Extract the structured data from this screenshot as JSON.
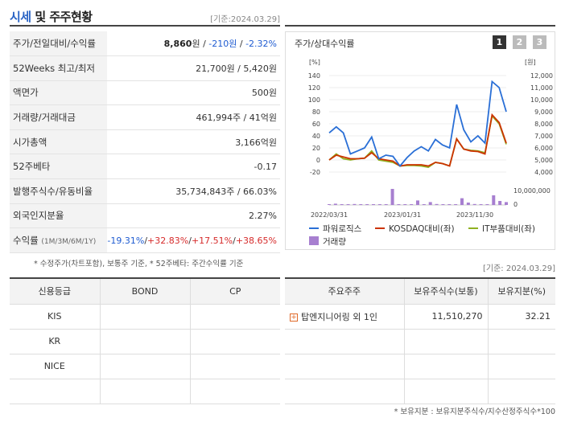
{
  "header": {
    "title_a": "시세",
    "title_b": " 및 주주현황",
    "date": "[기준:2024.03.29]"
  },
  "info_rows": [
    {
      "key": "주가/전일대비/수익률",
      "price": "8,860",
      "unit": "원",
      "sep1": " / ",
      "change": "-210원",
      "sep2": " / ",
      "rate": "-2.32%"
    },
    {
      "key": "52Weeks 최고/최저",
      "value": "21,700원 / 5,420원"
    },
    {
      "key": "액면가",
      "value": "500원"
    },
    {
      "key": "거래량/거래대금",
      "value": "461,994주 / 41억원"
    },
    {
      "key": "시가총액",
      "value": "3,166억원"
    },
    {
      "key": "52주베타",
      "value": "-0.17"
    },
    {
      "key": "발행주식수/유동비율",
      "value": "35,734,843주 / 66.03%"
    },
    {
      "key": "외국인지분율",
      "value": "2.27%"
    },
    {
      "key": "수익률",
      "key_small": "(1M/3M/6M/1Y)",
      "r1": "-19.31%",
      "r2": "+32.83%",
      "r3": "+17.51%",
      "r4": "+38.65%",
      "s": "/"
    }
  ],
  "footnote1": "* 수정주가(차트포함), 보통주 기준, * 52주베타: 주간수익률 기준",
  "chart": {
    "title": "주가/상대수익률",
    "tabs": [
      "1",
      "2",
      "3"
    ],
    "left_unit": "[%]",
    "right_unit": "[원]",
    "volume_tick": "10,000,000",
    "volume_zero": "0",
    "legend": [
      "파워로직스",
      "KOSDAQ대비(좌)",
      "IT부품대비(좌)",
      "거래량"
    ],
    "colors": {
      "main": "#2a6fd6",
      "kosdaq": "#cc3300",
      "it": "#8fb021",
      "volume": "#a77fd0"
    }
  },
  "chart_data": {
    "type": "line",
    "x_labels": [
      "2022/03/31",
      "2023/01/31",
      "2023/11/30"
    ],
    "left_ticks": [
      "140",
      "120",
      "100",
      "80",
      "60",
      "40",
      "20",
      "0",
      "-20"
    ],
    "right_ticks": [
      "12,000",
      "11,000",
      "10,000",
      "9,000",
      "8,000",
      "7,000",
      "6,000",
      "5,000",
      "4,000"
    ],
    "ylim_left": [
      -20,
      140
    ],
    "series": [
      {
        "name": "파워로직스",
        "values": [
          45,
          55,
          45,
          10,
          15,
          20,
          38,
          2,
          8,
          6,
          -10,
          4,
          15,
          22,
          15,
          34,
          25,
          20,
          92,
          50,
          30,
          40,
          28,
          130,
          120,
          80
        ]
      },
      {
        "name": "KOSDAQ대비(좌)",
        "values": [
          0,
          8,
          5,
          2,
          2,
          3,
          12,
          2,
          0,
          -2,
          -10,
          -8,
          -8,
          -8,
          -10,
          -4,
          -6,
          -10,
          35,
          18,
          15,
          14,
          10,
          75,
          62,
          28
        ]
      },
      {
        "name": "IT부품대비(좌)",
        "values": [
          0,
          10,
          2,
          0,
          2,
          3,
          15,
          0,
          -2,
          -4,
          -10,
          -9,
          -9,
          -10,
          -12,
          -4,
          -6,
          -10,
          35,
          18,
          16,
          15,
          12,
          73,
          60,
          26
        ]
      }
    ],
    "volume": [
      0.04,
      0.08,
      0.05,
      0.03,
      0.06,
      0.05,
      0.04,
      0.05,
      0.03,
      0.04,
      1.0,
      0.03,
      0.03,
      0.05,
      0.28,
      0.05,
      0.18,
      0.06,
      0.03,
      0.05,
      0.05,
      0.42,
      0.15,
      0.06,
      0.04,
      0.04,
      0.6,
      0.25,
      0.18
    ]
  },
  "date2": "[기준: 2024.03.29]",
  "credit": {
    "headers": [
      "신용등급",
      "BOND",
      "CP"
    ],
    "rows": [
      [
        "KIS",
        "",
        ""
      ],
      [
        "KR",
        "",
        ""
      ],
      [
        "NICE",
        "",
        ""
      ],
      [
        "",
        "",
        ""
      ]
    ]
  },
  "holders": {
    "headers": [
      "주요주주",
      "보유주식수(보통)",
      "보유지분(%)"
    ],
    "rows": [
      [
        "탑엔지니어링 외 1인",
        "11,510,270",
        "32.21"
      ],
      [
        "",
        "",
        ""
      ],
      [
        "",
        "",
        ""
      ],
      [
        "",
        "",
        ""
      ]
    ]
  },
  "footnote2": "* 보유지분 : 보유지분주식수/지수산정주식수*100"
}
